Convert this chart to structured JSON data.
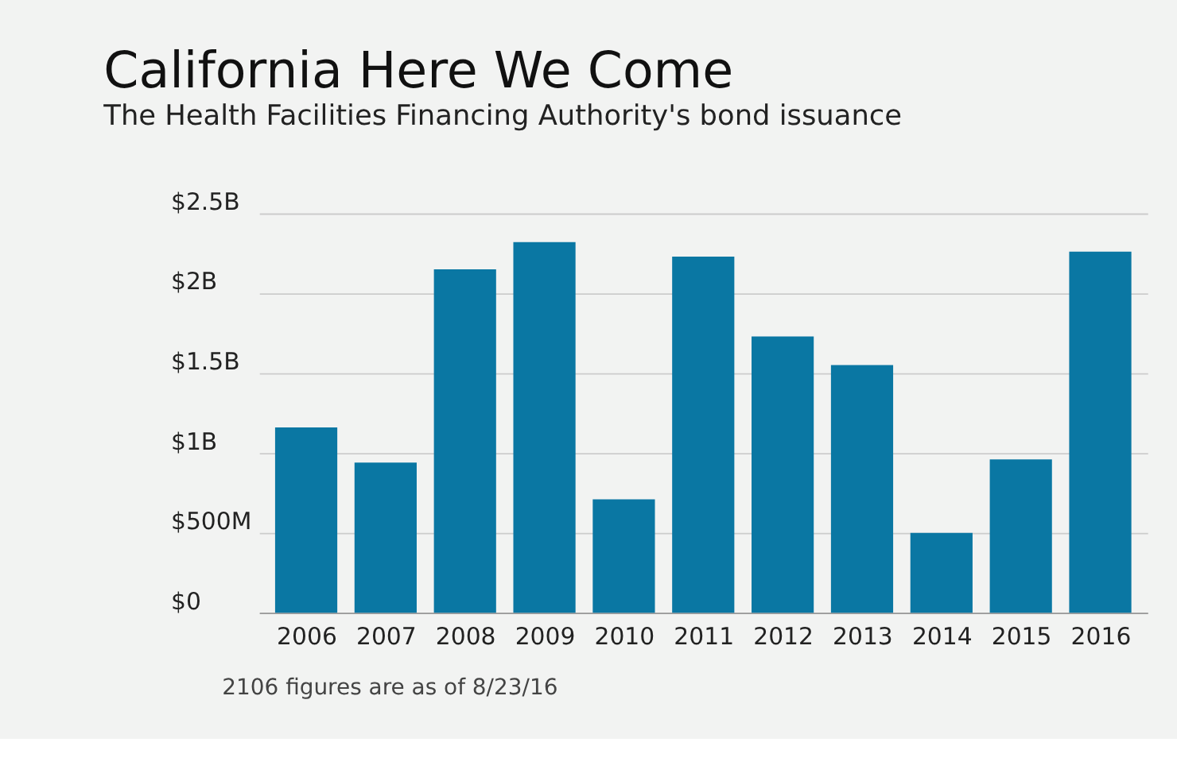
{
  "chart_data": {
    "type": "bar",
    "title": "California Here We Come",
    "subtitle": "The Health Facilities Financing Authority's bond issuance",
    "categories": [
      "2006",
      "2007",
      "2008",
      "2009",
      "2010",
      "2011",
      "2012",
      "2013",
      "2014",
      "2015",
      "2016"
    ],
    "values": [
      1160000000,
      940000000,
      2150000000,
      2320000000,
      710000000,
      2230000000,
      1730000000,
      1550000000,
      500000000,
      960000000,
      2260000000
    ],
    "color": "#0a77a3",
    "ylim": [
      0,
      2500000000
    ],
    "yticks": [
      {
        "value": 0,
        "label": "$0"
      },
      {
        "value": 500000000,
        "label": "$500M"
      },
      {
        "value": 1000000000,
        "label": "$1B"
      },
      {
        "value": 1500000000,
        "label": "$1.5B"
      },
      {
        "value": 2000000000,
        "label": "$2B"
      },
      {
        "value": 2500000000,
        "label": "$2.5B"
      }
    ],
    "grid": "y",
    "annotations": [
      "2106 figures are as of 8/23/16"
    ]
  }
}
